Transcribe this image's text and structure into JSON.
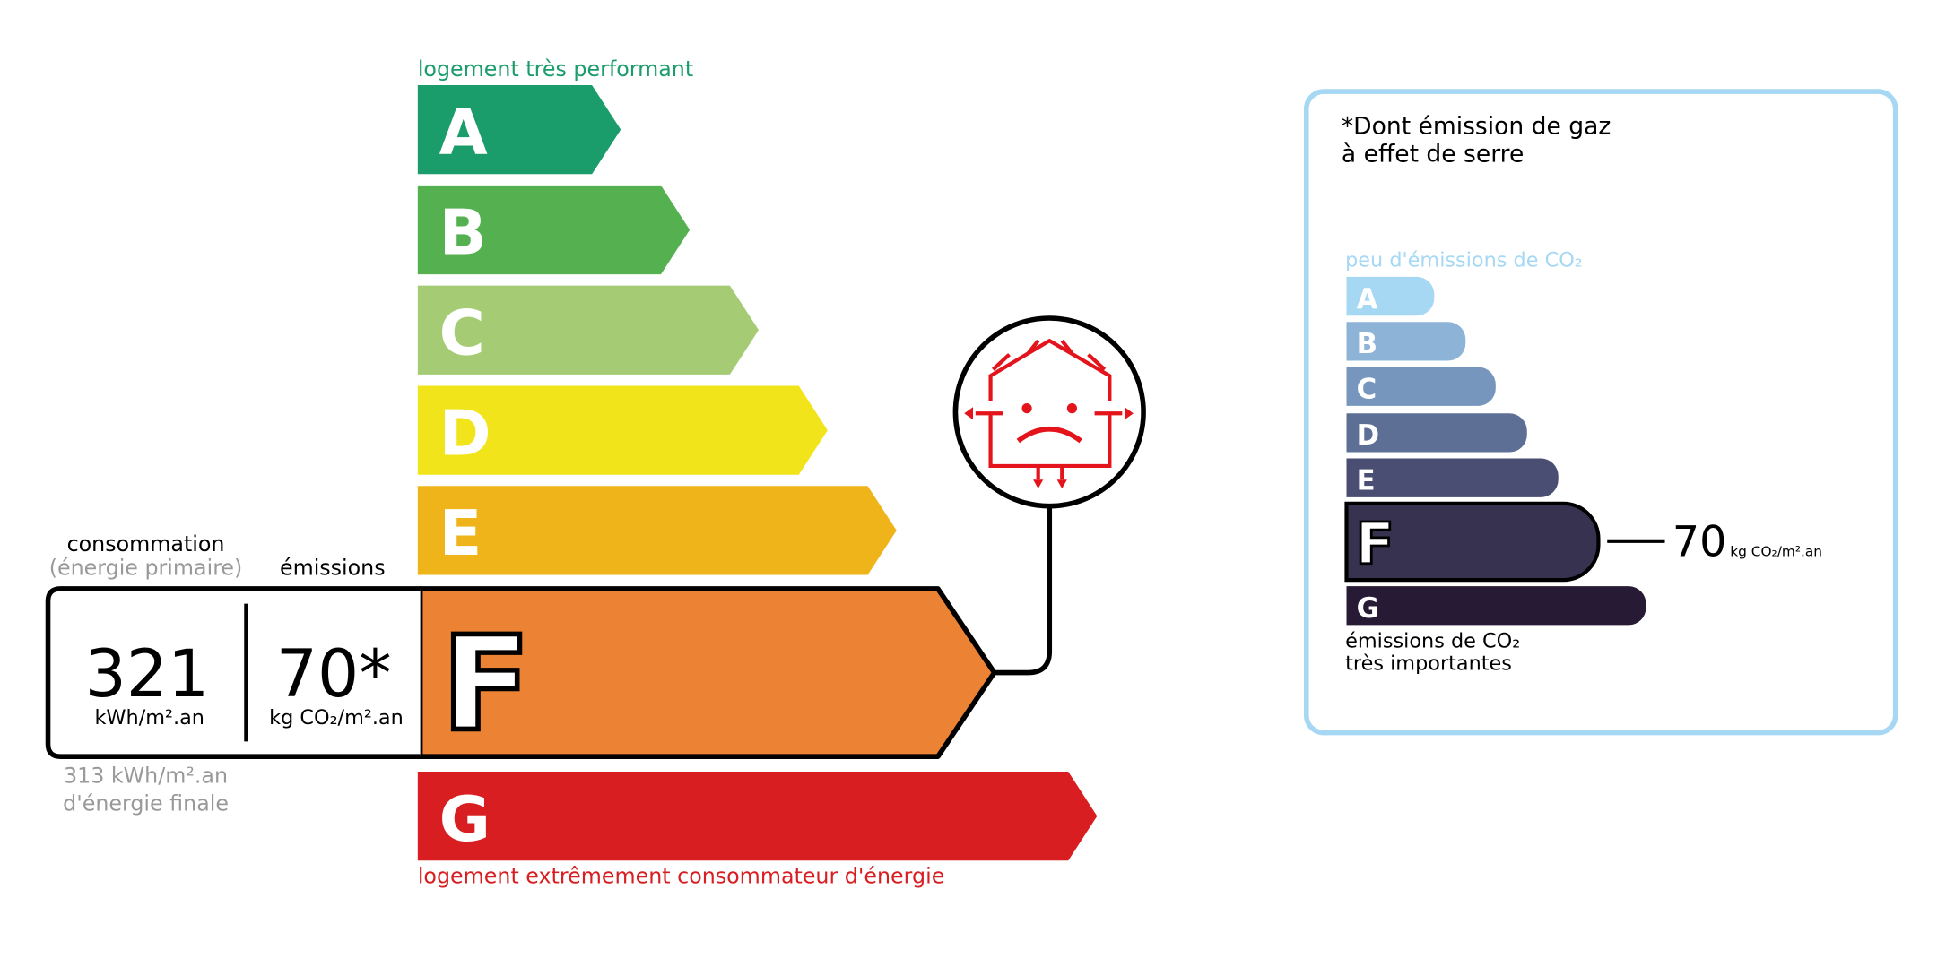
{
  "energy": {
    "top_label": "logement très performant",
    "classes": [
      "A",
      "B",
      "C",
      "D",
      "E",
      "F",
      "G"
    ],
    "colors": [
      "#1a9c6b",
      "#55b04f",
      "#a5cc74",
      "#f2e41b",
      "#f0b41b",
      "#ec8234",
      "#d81e21"
    ],
    "current_class": "F",
    "bottom_label": "logement extrêmement consommateur d'énergie",
    "consumption": {
      "title": "consommation",
      "subtitle": "(énergie primaire)",
      "value": "321",
      "unit": "kWh/m².an"
    },
    "emissions": {
      "title": "émissions",
      "value": "70*",
      "unit": "kg CO₂/m².an"
    },
    "final": {
      "line1": "313 kWh/m².an",
      "line2": "d'énergie finale"
    }
  },
  "climate": {
    "title_lines": [
      "*Dont émission de gaz",
      "à effet de serre"
    ],
    "top_label": "peu d'émissions de CO₂",
    "classes": [
      "A",
      "B",
      "C",
      "D",
      "E",
      "F",
      "G"
    ],
    "colors": [
      "#a6d8f4",
      "#8db4d6",
      "#7696bd",
      "#5e6f95",
      "#4a4e72",
      "#363250",
      "#271a35"
    ],
    "current_class": "F",
    "bottom_lines": [
      "émissions de CO₂",
      "très importantes"
    ],
    "value": "70",
    "unit": "kg CO₂/m².an"
  }
}
